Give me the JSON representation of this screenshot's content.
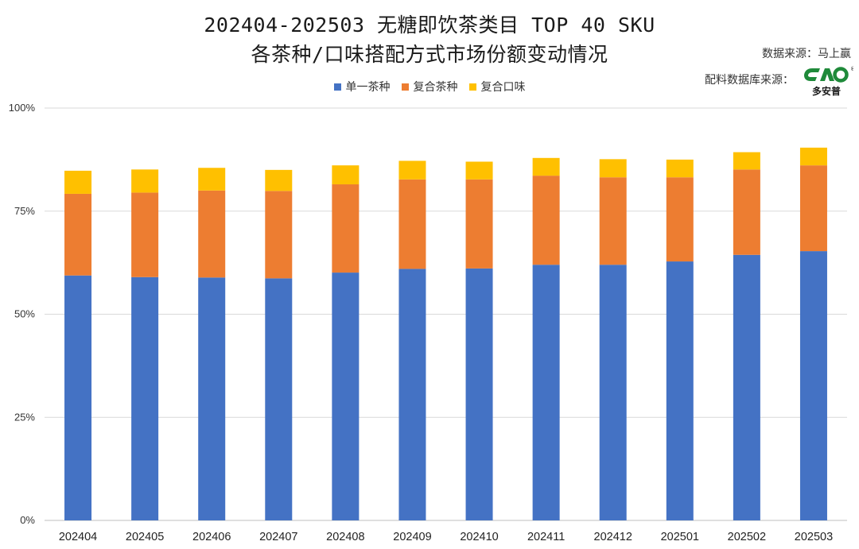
{
  "header": {
    "title_line1": "202404-202503 无糖即饮茶类目 TOP 40 SKU",
    "title_line2": "各茶种/口味搭配方式市场份额变动情况",
    "source_text": "数据来源：马上赢",
    "ingredient_source_text": "配料数据库来源：",
    "logo_text": "多安普",
    "logo_mark": "®"
  },
  "colors": {
    "single": "#4472C4",
    "compound": "#ED7D31",
    "flavor": "#FFC000",
    "grid": "#D9D9D9"
  },
  "chart_data": {
    "type": "bar",
    "stacked": true,
    "categories": [
      "202404",
      "202405",
      "202406",
      "202407",
      "202408",
      "202409",
      "202410",
      "202411",
      "202412",
      "202501",
      "202502",
      "202503"
    ],
    "series": [
      {
        "name": "单一茶种",
        "color": "#4472C4",
        "values": [
          59.4,
          59.0,
          58.9,
          58.7,
          60.1,
          61.0,
          61.1,
          62.0,
          62.0,
          62.8,
          64.4,
          65.3
        ]
      },
      {
        "name": "复合茶种",
        "color": "#ED7D31",
        "values": [
          19.8,
          20.5,
          21.1,
          21.2,
          21.4,
          21.7,
          21.6,
          21.6,
          21.2,
          20.4,
          20.7,
          20.8
        ]
      },
      {
        "name": "复合口味",
        "color": "#FFC000",
        "values": [
          5.6,
          5.6,
          5.5,
          5.1,
          4.6,
          4.5,
          4.3,
          4.3,
          4.4,
          4.3,
          4.2,
          4.3
        ]
      }
    ],
    "yticks": [
      "0%",
      "25%",
      "50%",
      "75%",
      "100%"
    ],
    "ylim": [
      0,
      100
    ],
    "grid": true,
    "legend_position": "top"
  }
}
